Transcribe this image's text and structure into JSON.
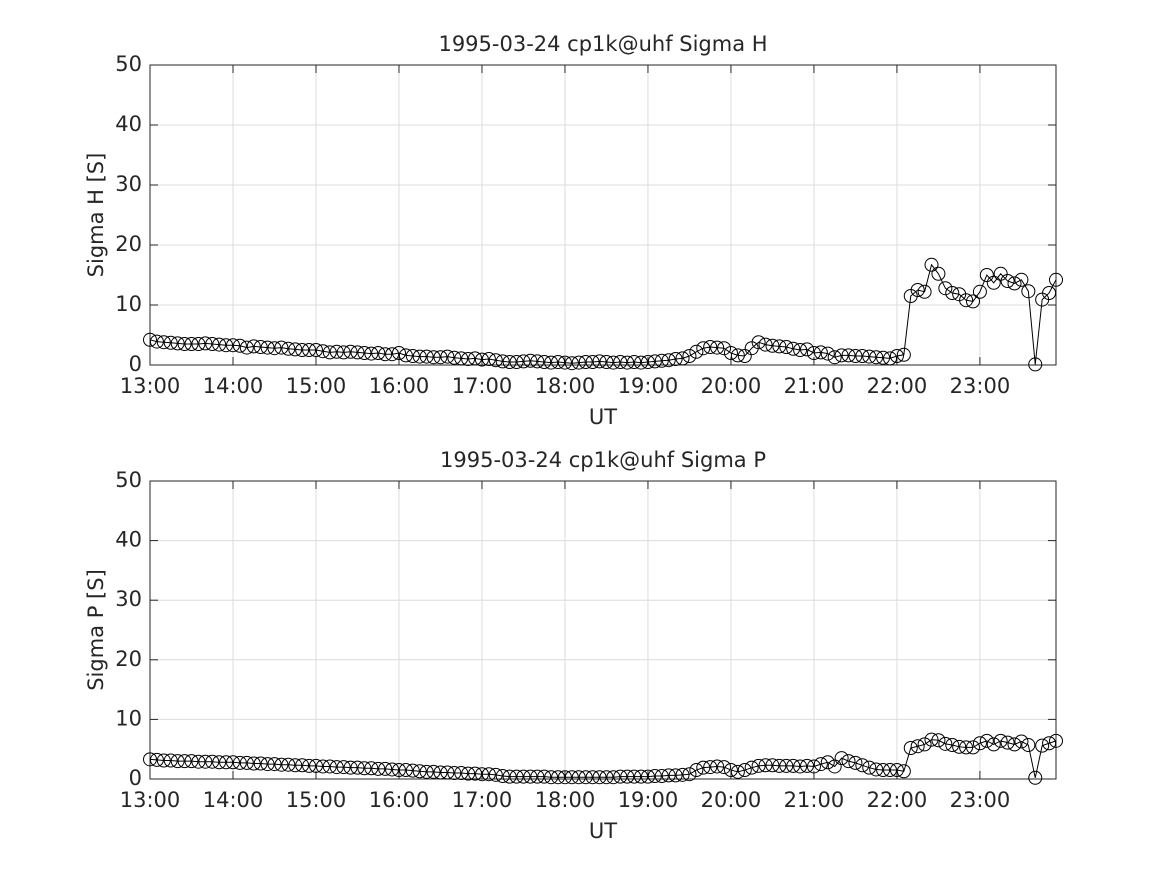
{
  "chart_data": [
    {
      "type": "line",
      "title": "1995-03-24  cp1k@uhf Sigma H",
      "xlabel": "UT",
      "ylabel": "Sigma H [S]",
      "categories": [
        "13:00",
        null,
        null,
        null,
        null,
        null,
        null,
        null,
        null,
        null,
        null,
        null,
        "14:00",
        null,
        null,
        null,
        null,
        null,
        null,
        null,
        null,
        null,
        null,
        null,
        "15:00",
        null,
        null,
        null,
        null,
        null,
        null,
        null,
        null,
        null,
        null,
        null,
        "16:00",
        null,
        null,
        null,
        null,
        null,
        null,
        null,
        null,
        null,
        null,
        null,
        "17:00",
        null,
        null,
        null,
        null,
        null,
        null,
        null,
        null,
        null,
        null,
        null,
        "18:00",
        null,
        null,
        null,
        null,
        null,
        null,
        null,
        null,
        null,
        null,
        null,
        "19:00",
        null,
        null,
        null,
        null,
        null,
        null,
        null,
        null,
        null,
        null,
        null,
        "20:00",
        null,
        null,
        null,
        null,
        null,
        null,
        null,
        null,
        null,
        null,
        null,
        "21:00",
        null,
        null,
        null,
        null,
        null,
        null,
        null,
        null,
        null,
        null,
        null,
        "22:00",
        null,
        null,
        null,
        null,
        null,
        null,
        null,
        null,
        null,
        null,
        null,
        "23:00",
        null,
        null,
        null,
        null,
        null,
        null,
        null,
        null,
        null,
        null,
        null
      ],
      "values": [
        4.2,
        3.9,
        3.8,
        3.7,
        3.6,
        3.5,
        3.5,
        3.5,
        3.6,
        3.5,
        3.4,
        3.3,
        3.3,
        3.2,
        2.9,
        3.1,
        3.0,
        2.9,
        2.8,
        2.9,
        2.7,
        2.6,
        2.5,
        2.5,
        2.5,
        2.3,
        2.1,
        2.2,
        2.1,
        2.2,
        2.1,
        2.0,
        1.9,
        2.0,
        1.8,
        1.8,
        2.0,
        1.6,
        1.5,
        1.4,
        1.4,
        1.3,
        1.3,
        1.4,
        1.2,
        1.1,
        1.0,
        1.1,
        0.9,
        1.0,
        0.8,
        0.6,
        0.5,
        0.5,
        0.6,
        0.7,
        0.6,
        0.5,
        0.4,
        0.5,
        0.4,
        0.3,
        0.4,
        0.5,
        0.5,
        0.6,
        0.5,
        0.4,
        0.5,
        0.4,
        0.5,
        0.4,
        0.5,
        0.6,
        0.7,
        0.8,
        1.0,
        1.1,
        1.5,
        2.2,
        2.8,
        3.0,
        2.9,
        2.8,
        2.0,
        1.6,
        1.5,
        2.8,
        3.8,
        3.4,
        3.2,
        3.1,
        3.0,
        2.7,
        2.5,
        2.6,
        2.0,
        2.1,
        1.9,
        1.3,
        1.6,
        1.6,
        1.5,
        1.5,
        1.4,
        1.3,
        1.2,
        1.1,
        1.5,
        1.7,
        11.5,
        12.5,
        12.2,
        16.7,
        15.2,
        12.8,
        12.0,
        11.8,
        10.8,
        10.6,
        12.2,
        15.0,
        13.7,
        15.2,
        14.0,
        13.6,
        14.2,
        12.3,
        0.1,
        10.9,
        12.0,
        14.2
      ],
      "color": "#000000",
      "marker": "circle",
      "ylim": [
        0,
        50
      ],
      "yticks": [
        0,
        10,
        20,
        30,
        40,
        50
      ],
      "grid": true
    },
    {
      "type": "line",
      "title": "1995-03-24  cp1k@uhf Sigma P",
      "xlabel": "UT",
      "ylabel": "Sigma P [S]",
      "categories": [
        "13:00",
        null,
        null,
        null,
        null,
        null,
        null,
        null,
        null,
        null,
        null,
        null,
        "14:00",
        null,
        null,
        null,
        null,
        null,
        null,
        null,
        null,
        null,
        null,
        null,
        "15:00",
        null,
        null,
        null,
        null,
        null,
        null,
        null,
        null,
        null,
        null,
        null,
        "16:00",
        null,
        null,
        null,
        null,
        null,
        null,
        null,
        null,
        null,
        null,
        null,
        "17:00",
        null,
        null,
        null,
        null,
        null,
        null,
        null,
        null,
        null,
        null,
        null,
        "18:00",
        null,
        null,
        null,
        null,
        null,
        null,
        null,
        null,
        null,
        null,
        null,
        "19:00",
        null,
        null,
        null,
        null,
        null,
        null,
        null,
        null,
        null,
        null,
        null,
        "20:00",
        null,
        null,
        null,
        null,
        null,
        null,
        null,
        null,
        null,
        null,
        null,
        "21:00",
        null,
        null,
        null,
        null,
        null,
        null,
        null,
        null,
        null,
        null,
        null,
        "22:00",
        null,
        null,
        null,
        null,
        null,
        null,
        null,
        null,
        null,
        null,
        null,
        "23:00",
        null,
        null,
        null,
        null,
        null,
        null,
        null,
        null,
        null,
        null,
        null
      ],
      "values": [
        3.3,
        3.2,
        3.1,
        3.1,
        3.0,
        3.0,
        3.0,
        2.9,
        2.9,
        2.9,
        2.8,
        2.8,
        2.8,
        2.7,
        2.7,
        2.6,
        2.6,
        2.5,
        2.5,
        2.4,
        2.4,
        2.3,
        2.3,
        2.2,
        2.2,
        2.1,
        2.1,
        2.0,
        2.0,
        1.9,
        1.9,
        1.8,
        1.8,
        1.7,
        1.7,
        1.6,
        1.5,
        1.5,
        1.4,
        1.3,
        1.2,
        1.2,
        1.1,
        1.1,
        1.0,
        1.0,
        0.9,
        0.9,
        0.8,
        0.8,
        0.7,
        0.5,
        0.4,
        0.4,
        0.4,
        0.4,
        0.4,
        0.4,
        0.3,
        0.3,
        0.3,
        0.3,
        0.3,
        0.3,
        0.3,
        0.3,
        0.3,
        0.3,
        0.4,
        0.4,
        0.4,
        0.4,
        0.4,
        0.5,
        0.5,
        0.6,
        0.6,
        0.7,
        0.8,
        1.5,
        1.9,
        2.0,
        2.1,
        2.0,
        1.5,
        1.2,
        1.5,
        1.9,
        2.2,
        2.3,
        2.3,
        2.2,
        2.2,
        2.2,
        2.1,
        2.2,
        2.1,
        2.5,
        2.8,
        2.1,
        3.5,
        3.0,
        2.7,
        2.3,
        1.9,
        1.6,
        1.5,
        1.5,
        1.5,
        1.3,
        5.2,
        5.5,
        5.8,
        6.6,
        6.5,
        5.9,
        5.7,
        5.4,
        5.3,
        5.3,
        6.0,
        6.4,
        5.8,
        6.4,
        6.1,
        5.8,
        6.3,
        5.7,
        0.2,
        5.6,
        6.0,
        6.4
      ],
      "color": "#000000",
      "marker": "circle",
      "ylim": [
        0,
        50
      ],
      "yticks": [
        0,
        10,
        20,
        30,
        40,
        50
      ],
      "grid": true
    }
  ]
}
